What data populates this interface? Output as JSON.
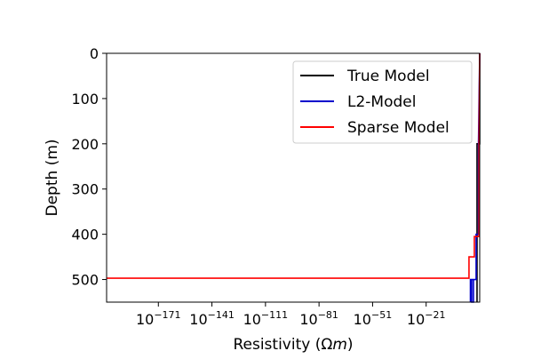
{
  "chart_data": {
    "type": "line",
    "xlabel": "Resistivity (Ωm)",
    "ylabel": "Depth (m)",
    "x_scale": "log",
    "y_inverted": true,
    "xlim_log10": [
      -200,
      9
    ],
    "ylim": [
      0,
      550
    ],
    "x_ticks": [
      {
        "exp": -171,
        "base": "10",
        "sup": "−171"
      },
      {
        "exp": -141,
        "base": "10",
        "sup": "−141"
      },
      {
        "exp": -111,
        "base": "10",
        "sup": "−111"
      },
      {
        "exp": -81,
        "base": "10",
        "sup": "−81"
      },
      {
        "exp": -51,
        "base": "10",
        "sup": "−51"
      },
      {
        "exp": -21,
        "base": "10",
        "sup": "−21"
      }
    ],
    "y_ticks": [
      0,
      100,
      200,
      300,
      400,
      500
    ],
    "grid": false,
    "legend_position": "top-right",
    "series": [
      {
        "name": "True Model",
        "color": "#000000",
        "points": [
          [
            9,
            0
          ],
          [
            9,
            200
          ],
          [
            7.5,
            200
          ],
          [
            7.5,
            400
          ],
          [
            7.5,
            500
          ],
          [
            7.5,
            550
          ]
        ]
      },
      {
        "name": "L2-Model",
        "color": "#0000cc",
        "points": [
          [
            9,
            0
          ],
          [
            8.3,
            200
          ],
          [
            8.3,
            400
          ],
          [
            7.0,
            400
          ],
          [
            7.0,
            500
          ],
          [
            4.5,
            500
          ],
          [
            4.5,
            550
          ],
          [
            5.5,
            550
          ],
          [
            5.5,
            500
          ],
          [
            3.8,
            500
          ],
          [
            3.8,
            550
          ]
        ]
      },
      {
        "name": "Sparse Model",
        "color": "#ff0000",
        "points": [
          [
            9,
            0
          ],
          [
            8.6,
            200
          ],
          [
            8.6,
            405
          ],
          [
            6.0,
            405
          ],
          [
            6.0,
            450
          ],
          [
            3.0,
            450
          ],
          [
            3.0,
            497
          ],
          [
            -200,
            497
          ]
        ]
      }
    ]
  }
}
